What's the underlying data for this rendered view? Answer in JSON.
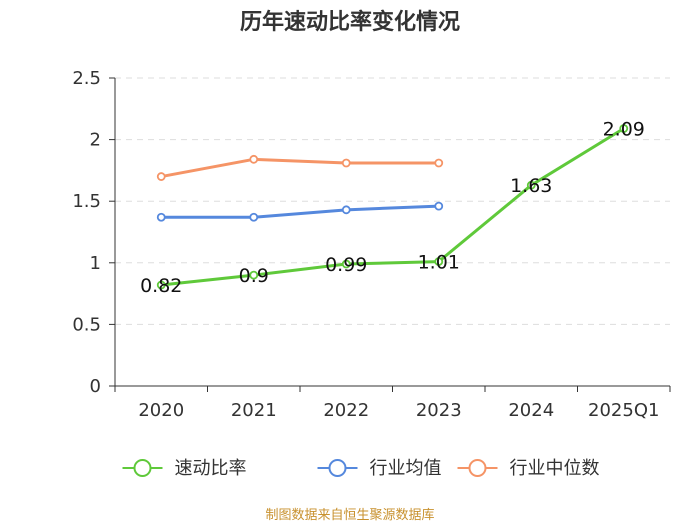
{
  "chart_data": {
    "type": "line",
    "title": "历年速动比率变化情况",
    "categories": [
      "2020",
      "2021",
      "2022",
      "2023",
      "2024",
      "2025Q1"
    ],
    "ylim": [
      0,
      2.5
    ],
    "yticks": [
      0,
      0.5,
      1,
      1.5,
      2,
      2.5
    ],
    "ytick_labels": [
      "0",
      "0.5",
      "1",
      "1.5",
      "2",
      "2.5"
    ],
    "grid": true,
    "legend_position": "bottom",
    "series": [
      {
        "name": "速动比率",
        "color": "#5fc93a",
        "values": [
          0.82,
          0.9,
          0.99,
          1.01,
          1.63,
          2.09
        ],
        "labels": [
          "0.82",
          "0.9",
          "0.99",
          "1.01",
          "1.63",
          "2.09"
        ]
      },
      {
        "name": "行业均值",
        "color": "#5588dd",
        "values": [
          1.37,
          1.37,
          1.43,
          1.46,
          null,
          null
        ]
      },
      {
        "name": "行业中位数",
        "color": "#f59466",
        "values": [
          1.7,
          1.84,
          1.81,
          1.81,
          null,
          null
        ]
      }
    ]
  },
  "source": "制图数据来自恒生聚源数据库"
}
